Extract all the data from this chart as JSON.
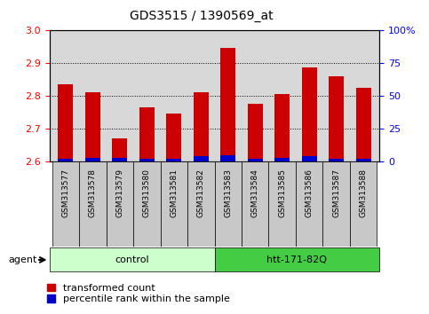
{
  "title": "GDS3515 / 1390569_at",
  "categories": [
    "GSM313577",
    "GSM313578",
    "GSM313579",
    "GSM313580",
    "GSM313581",
    "GSM313582",
    "GSM313583",
    "GSM313584",
    "GSM313585",
    "GSM313586",
    "GSM313587",
    "GSM313588"
  ],
  "transformed_count": [
    2.835,
    2.81,
    2.67,
    2.765,
    2.745,
    2.81,
    2.945,
    2.775,
    2.805,
    2.885,
    2.86,
    2.825
  ],
  "percentile_rank": [
    2,
    3,
    3,
    2,
    2,
    4,
    5,
    2,
    3,
    4,
    2,
    2
  ],
  "ylim_left": [
    2.6,
    3.0
  ],
  "ylim_right": [
    0,
    100
  ],
  "yticks_left": [
    2.6,
    2.7,
    2.8,
    2.9,
    3.0
  ],
  "yticks_right": [
    0,
    25,
    50,
    75,
    100
  ],
  "ytick_right_labels": [
    "0",
    "25",
    "50",
    "75",
    "100%"
  ],
  "bar_width": 0.55,
  "red_color": "#CC0000",
  "blue_color": "#0000CC",
  "control_label": "control",
  "treatment_label": "htt-171-82Q",
  "agent_label": "agent",
  "legend_red": "transformed count",
  "legend_blue": "percentile rank within the sample",
  "background_color": "#ffffff",
  "plot_bg_color": "#d8d8d8",
  "xtick_bg_color": "#c8c8c8",
  "control_bg_light": "#ccffcc",
  "control_bg_dark": "#66dd66",
  "treatment_bg": "#44cc44",
  "base_value": 2.6,
  "percentile_scale_factor": 0.004
}
